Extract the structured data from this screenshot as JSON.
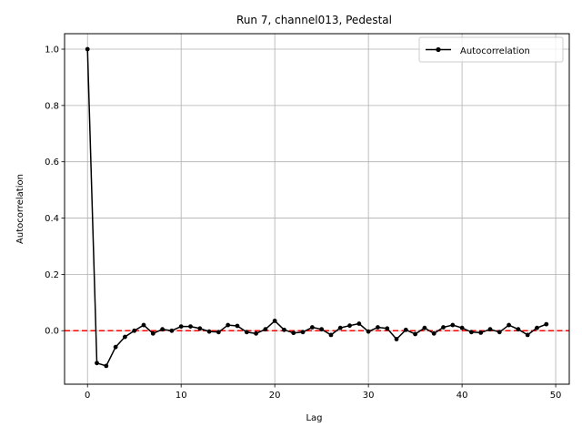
{
  "chart_data": {
    "type": "line",
    "title": "Run 7, channel013, Pedestal",
    "xlabel": "Lag",
    "ylabel": "Autocorrelation",
    "xlim": [
      -2.45,
      51.45
    ],
    "ylim": [
      -0.19,
      1.055
    ],
    "xticks": [
      0,
      10,
      20,
      30,
      40,
      50
    ],
    "yticks": [
      0.0,
      0.2,
      0.4,
      0.6,
      0.8,
      1.0
    ],
    "xtick_labels": [
      "0",
      "10",
      "20",
      "30",
      "40",
      "50"
    ],
    "ytick_labels": [
      "0.0",
      "0.2",
      "0.4",
      "0.6",
      "0.8",
      "1.0"
    ],
    "grid": true,
    "legend_position": "top-right",
    "reference_line": {
      "y": 0,
      "style": "dashed",
      "color": "#ff0000"
    },
    "series": [
      {
        "name": "Autocorrelation",
        "color": "#000000",
        "marker": "circle",
        "x": [
          0,
          1,
          2,
          3,
          4,
          5,
          6,
          7,
          8,
          9,
          10,
          11,
          12,
          13,
          14,
          15,
          16,
          17,
          18,
          19,
          20,
          21,
          22,
          23,
          24,
          25,
          26,
          27,
          28,
          29,
          30,
          31,
          32,
          33,
          34,
          35,
          36,
          37,
          38,
          39,
          40,
          41,
          42,
          43,
          44,
          45,
          46,
          47,
          48,
          49
        ],
        "values": [
          1.0,
          -0.115,
          -0.125,
          -0.058,
          -0.022,
          0.0,
          0.02,
          -0.01,
          0.005,
          0.0,
          0.015,
          0.015,
          0.008,
          -0.003,
          -0.005,
          0.02,
          0.017,
          -0.005,
          -0.01,
          0.005,
          0.035,
          0.003,
          -0.008,
          -0.005,
          0.012,
          0.005,
          -0.015,
          0.01,
          0.018,
          0.025,
          -0.003,
          0.012,
          0.008,
          -0.03,
          0.003,
          -0.012,
          0.01,
          -0.01,
          0.012,
          0.02,
          0.01,
          -0.005,
          -0.007,
          0.005,
          -0.005,
          0.02,
          0.005,
          -0.015,
          0.01,
          0.023
        ]
      }
    ]
  }
}
